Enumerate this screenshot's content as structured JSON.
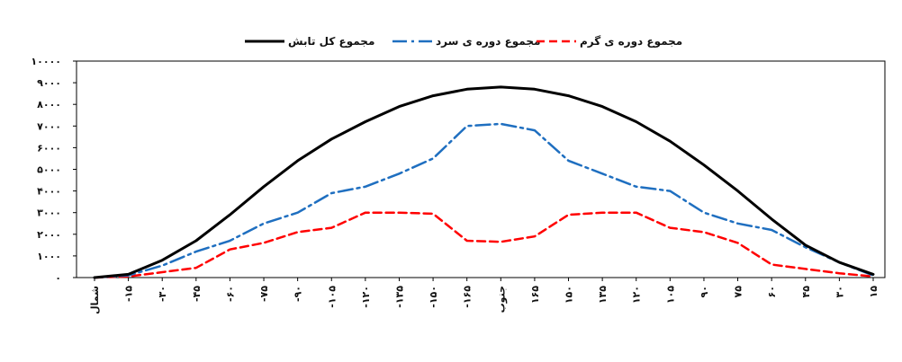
{
  "chart_data": {
    "type": "line",
    "title": "",
    "xlabel": "",
    "ylabel": "",
    "ylim": [
      0,
      10000
    ],
    "grid": false,
    "legend_position": "top-center",
    "y_tick_labels": [
      "۰",
      "۱۰۰۰",
      "۲۰۰۰",
      "۳۰۰۰",
      "۴۰۰۰",
      "۵۰۰۰",
      "۶۰۰۰",
      "۷۰۰۰",
      "۸۰۰۰",
      "۹۰۰۰",
      "۱۰۰۰۰"
    ],
    "y_tick_values": [
      0,
      1000,
      2000,
      3000,
      4000,
      5000,
      6000,
      7000,
      8000,
      9000,
      10000
    ],
    "categories": [
      "شمال",
      "-۱۵",
      "-۳۰",
      "-۴۵",
      "-۶۰",
      "-۷۵",
      "-۹۰",
      "-۱۰۵",
      "-۱۲۰",
      "-۱۳۵",
      "-۱۵۰",
      "-۱۶۵",
      "جنوب",
      "۱۶۵",
      "۱۵۰",
      "۱۳۵",
      "۱۲۰",
      "۱۰۵",
      "۹۰",
      "۷۵",
      "۶۰",
      "۴۵",
      "۳۰",
      "۱۵"
    ],
    "series": [
      {
        "name": "مجموع کل تابش",
        "color": "#000000",
        "dash": "solid",
        "values": [
          0,
          150,
          800,
          1700,
          2900,
          4200,
          5400,
          6400,
          7200,
          7900,
          8400,
          8700,
          8800,
          8700,
          8400,
          7900,
          7200,
          6300,
          5200,
          4000,
          2700,
          1500,
          700,
          150
        ]
      },
      {
        "name": "مجموع دوره ی سرد",
        "color": "#1f6fc0",
        "dash": "dashdot",
        "values": [
          0,
          100,
          550,
          1200,
          1700,
          2500,
          3000,
          3900,
          4200,
          4800,
          5500,
          7000,
          7100,
          6800,
          5400,
          4800,
          4200,
          4000,
          3000,
          2500,
          2200,
          1400,
          700,
          100
        ]
      },
      {
        "name": "مجموع دوره ی گرم",
        "color": "#ff0000",
        "dash": "dashed",
        "values": [
          0,
          50,
          250,
          450,
          1300,
          1600,
          2100,
          2300,
          3000,
          3000,
          2950,
          1700,
          1650,
          1900,
          2900,
          3000,
          3000,
          2300,
          2100,
          1600,
          600,
          400,
          200,
          50
        ]
      }
    ]
  }
}
